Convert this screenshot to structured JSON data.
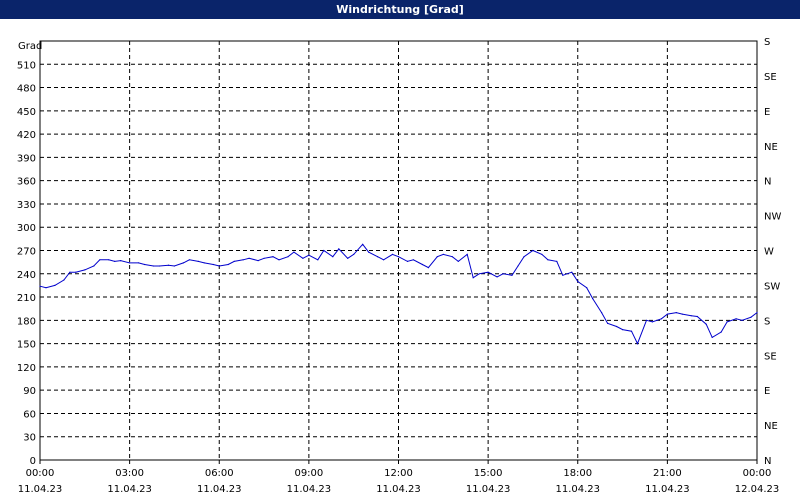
{
  "window": {
    "title": "Windrichtung [Grad]"
  },
  "colors": {
    "title_bar": "#0a246a",
    "line": "#0000cc",
    "grid": "#000000",
    "background": "#ffffff"
  },
  "chart_data": {
    "type": "line",
    "title": "Windrichtung [Grad]",
    "ylabel": "Grad",
    "ylim": [
      0,
      540
    ],
    "yticks": [
      0,
      30,
      60,
      90,
      120,
      150,
      180,
      210,
      240,
      270,
      300,
      330,
      360,
      390,
      420,
      450,
      480,
      510
    ],
    "y2_labels": [
      "N",
      "NE",
      "E",
      "SE",
      "S",
      "SW",
      "W",
      "NW",
      "N",
      "NE",
      "E",
      "SE",
      "S"
    ],
    "x_ticks": [
      {
        "time": "00:00",
        "date": "11.04.23"
      },
      {
        "time": "03:00",
        "date": "11.04.23"
      },
      {
        "time": "06:00",
        "date": "11.04.23"
      },
      {
        "time": "09:00",
        "date": "11.04.23"
      },
      {
        "time": "12:00",
        "date": "11.04.23"
      },
      {
        "time": "15:00",
        "date": "11.04.23"
      },
      {
        "time": "18:00",
        "date": "11.04.23"
      },
      {
        "time": "21:00",
        "date": "11.04.23"
      },
      {
        "time": "00:00",
        "date": "12.04.23"
      }
    ],
    "grid": true,
    "series": [
      {
        "x": [
          0,
          0.2,
          0.5,
          0.8,
          1.0,
          1.2,
          1.5,
          1.8,
          2.0,
          2.3,
          2.5,
          2.7,
          3.0,
          3.3,
          3.5,
          3.8,
          4.0,
          4.3,
          4.5,
          4.8,
          5.0,
          5.3,
          5.5,
          5.8,
          6.0,
          6.3,
          6.5,
          6.8,
          7.0,
          7.3,
          7.5,
          7.8,
          8.0,
          8.3,
          8.5,
          8.8,
          9.0,
          9.3,
          9.5,
          9.8,
          10.0,
          10.3,
          10.5,
          10.8,
          11.0,
          11.3,
          11.5,
          11.8,
          12.0,
          12.3,
          12.5,
          12.8,
          13.0,
          13.3,
          13.5,
          13.8,
          14.0,
          14.3,
          14.5,
          14.7,
          15.0,
          15.3,
          15.5,
          15.8,
          16.0,
          16.2,
          16.5,
          16.8,
          17.0,
          17.3,
          17.5,
          17.8,
          18.0,
          18.3,
          18.5,
          18.8,
          19.0,
          19.3,
          19.5,
          19.8,
          20.0,
          20.3,
          20.5,
          20.8,
          21.0,
          21.3,
          21.5,
          21.8,
          22.0,
          22.3,
          22.5,
          22.8,
          23.0,
          23.3,
          23.5,
          23.8,
          24.0
        ],
        "y": [
          224,
          222,
          225,
          232,
          242,
          242,
          245,
          250,
          258,
          258,
          256,
          257,
          254,
          254,
          252,
          250,
          250,
          251,
          250,
          254,
          258,
          256,
          254,
          252,
          250,
          252,
          256,
          258,
          260,
          257,
          260,
          262,
          258,
          262,
          268,
          260,
          264,
          258,
          270,
          262,
          272,
          260,
          265,
          278,
          268,
          262,
          258,
          265,
          262,
          256,
          258,
          252,
          248,
          262,
          265,
          262,
          256,
          265,
          235,
          240,
          242,
          236,
          240,
          238,
          250,
          262,
          270,
          265,
          258,
          256,
          238,
          242,
          230,
          222,
          208,
          190,
          176,
          172,
          168,
          166,
          150,
          180,
          178,
          182,
          188,
          190,
          188,
          186,
          185,
          175,
          158,
          165,
          178,
          182,
          180,
          184,
          190
        ]
      }
    ]
  }
}
